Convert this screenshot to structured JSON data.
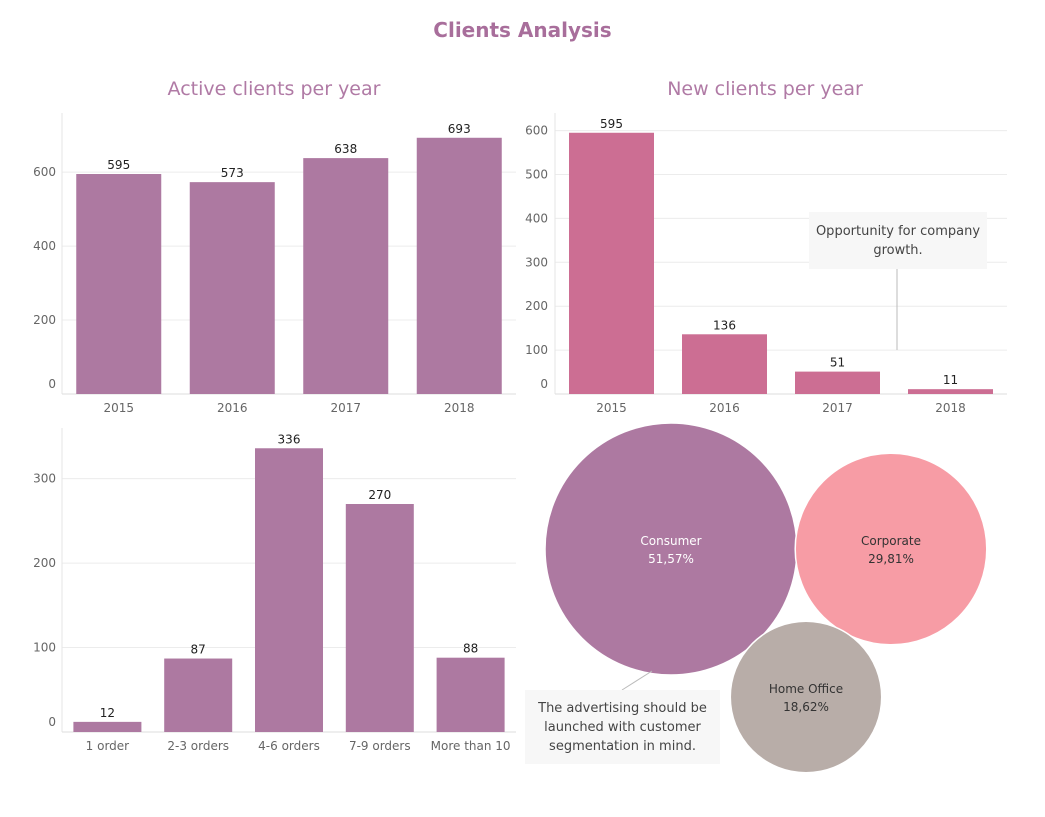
{
  "dashboard": {
    "title": "Clients Analysis"
  },
  "colors": {
    "purple": "#ad79a1",
    "rose": "#cc6e93",
    "pink": "#f79ca5",
    "taupe": "#b8ada8"
  },
  "annotations": {
    "growth": "Opportunity for company growth.",
    "advertising": "The advertising should be launched with customer segmentation in mind."
  },
  "chart_data": [
    {
      "id": "active",
      "type": "bar",
      "title": "Active clients per year",
      "categories": [
        "2015",
        "2016",
        "2017",
        "2018"
      ],
      "values": [
        595,
        573,
        638,
        693
      ],
      "yticks": [
        0,
        200,
        400,
        600
      ],
      "ylim": [
        0,
        760
      ],
      "color": "#ad79a1",
      "grid": true
    },
    {
      "id": "new",
      "type": "bar",
      "title": "New clients per year",
      "categories": [
        "2015",
        "2016",
        "2017",
        "2018"
      ],
      "values": [
        595,
        136,
        51,
        11
      ],
      "yticks": [
        0,
        100,
        200,
        300,
        400,
        500,
        600
      ],
      "ylim": [
        0,
        640
      ],
      "color": "#cc6e93",
      "grid": true
    },
    {
      "id": "orders",
      "type": "bar",
      "title": "",
      "categories": [
        "1 order",
        "2-3 orders",
        "4-6 orders",
        "7-9 orders",
        "More than 10"
      ],
      "values": [
        12,
        87,
        336,
        270,
        88
      ],
      "yticks": [
        0,
        100,
        200,
        300
      ],
      "ylim": [
        0,
        360
      ],
      "color": "#ad79a1",
      "grid": true
    },
    {
      "id": "segments",
      "type": "bubble",
      "title": "",
      "items": [
        {
          "name": "Consumer",
          "value": 51.57,
          "label": "51,57%",
          "color": "#ad79a1",
          "text_color": "#ffffff"
        },
        {
          "name": "Corporate",
          "value": 29.81,
          "label": "29,81%",
          "color": "#f79ca5",
          "text_color": "#333333"
        },
        {
          "name": "Home Office",
          "value": 18.62,
          "label": "18,62%",
          "color": "#b8ada8",
          "text_color": "#333333"
        }
      ]
    }
  ]
}
